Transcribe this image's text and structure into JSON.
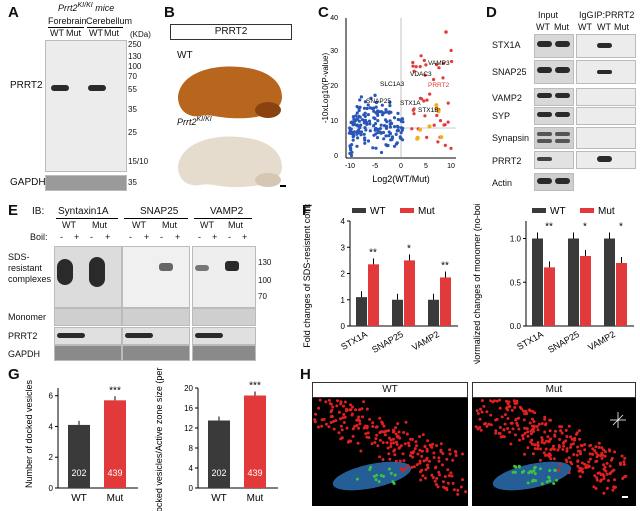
{
  "panels": {
    "A": {
      "label": "A",
      "mice": "Prrt2",
      "mice_sup": "KI/KI",
      "mice_suffix": " mice",
      "regions": [
        "Forebrain",
        "Cerebellum"
      ],
      "lanes": [
        "WT",
        "Mut",
        "WT",
        "Mut"
      ],
      "protein": "PRRT2",
      "loading": "GAPDH",
      "kda_unit": "(KDa)",
      "markers": [
        "250",
        "130",
        "100",
        "70",
        "55",
        "35",
        "25",
        "15/10",
        "35"
      ]
    },
    "B": {
      "label": "B",
      "header": "PRRT2",
      "wt": "WT",
      "mut": "Prrt2",
      "mut_sup": "KI/KI"
    },
    "C": {
      "label": "C",
      "ylabel": "-10xLog10(P-value)",
      "xlabel": "Log2(WT/Mut)",
      "annotations": [
        "VAMP3",
        "VDAC3",
        "PRRT2",
        "SLC1A3",
        "SNAP25",
        "STX1A",
        "STX1B"
      ],
      "xticks": [
        "-10",
        "-5",
        "0",
        "5",
        "10"
      ],
      "yticks": [
        "0",
        "10",
        "20",
        "30",
        "40"
      ]
    },
    "D": {
      "label": "D",
      "groups": [
        "Input",
        "IgG",
        "IP:PRRT2"
      ],
      "lanes": [
        "WT",
        "Mut",
        "WT",
        "WT",
        "Mut"
      ],
      "rows": [
        "STX1A",
        "SNAP25",
        "VAMP2",
        "SYP",
        "Synapsin",
        "PRRT2",
        "Actin"
      ]
    },
    "E": {
      "label": "E",
      "ib": "IB:",
      "targets": [
        "Syntaxin1A",
        "SNAP25",
        "VAMP2"
      ],
      "genotypes": [
        "WT",
        "Mut",
        "WT",
        "Mut",
        "WT",
        "Mut"
      ],
      "boil": "Boil:",
      "boil_signs": [
        "-",
        "+",
        "-",
        "+",
        "-",
        "+",
        "-",
        "+",
        "-",
        "+",
        "-",
        "+"
      ],
      "rows": [
        "SDS-resistant complexes",
        "Monomer",
        "PRRT2",
        "GAPDH"
      ],
      "markers": [
        "130",
        "100",
        "70"
      ]
    },
    "F": {
      "label": "F",
      "legend": [
        "WT",
        "Mut"
      ],
      "colors": {
        "wt": "#3a3a3a",
        "mut": "#e23a3a"
      }
    },
    "G": {
      "label": "G",
      "legend_n": [
        "202",
        "439"
      ]
    },
    "H": {
      "label": "H",
      "titles": [
        "WT",
        "Mut"
      ]
    }
  },
  "chart_data": [
    {
      "type": "bar",
      "title": "",
      "categories": [
        "STX1A",
        "SNAP25",
        "VAMP2"
      ],
      "series": [
        {
          "name": "WT",
          "values": [
            1.1,
            1.0,
            1.0
          ]
        },
        {
          "name": "Mut",
          "values": [
            2.35,
            2.5,
            1.85
          ]
        }
      ],
      "significance": [
        "**",
        "*",
        "**"
      ],
      "ylabel": "Fold changes of SDS-resistent complexes",
      "yticks": [
        "0",
        "1",
        "2",
        "3",
        "4"
      ],
      "ylim": [
        0,
        4
      ]
    },
    {
      "type": "bar",
      "title": "",
      "categories": [
        "STX1A",
        "SNAP25",
        "VAMP2"
      ],
      "series": [
        {
          "name": "WT",
          "values": [
            1.0,
            1.0,
            1.0
          ]
        },
        {
          "name": "Mut",
          "values": [
            0.67,
            0.8,
            0.72
          ]
        }
      ],
      "significance": [
        "**",
        "*",
        "*"
      ],
      "ylabel": "Normalized changes of monomer (no-boiled/boiled)",
      "yticks": [
        "0.0",
        "0.5",
        "1.0"
      ],
      "ylim": [
        0,
        1.2
      ]
    },
    {
      "type": "bar",
      "title": "",
      "categories": [
        "WT",
        "Mut"
      ],
      "values": [
        4.1,
        5.7
      ],
      "n": [
        "202",
        "439"
      ],
      "significance": "***",
      "ylabel": "Number of docked vesicles",
      "yticks": [
        "0",
        "2",
        "4",
        "6"
      ],
      "ylim": [
        0,
        6.5
      ]
    },
    {
      "type": "bar",
      "title": "",
      "categories": [
        "WT",
        "Mut"
      ],
      "values": [
        13.5,
        18.5
      ],
      "n": [
        "202",
        "439"
      ],
      "significance": "***",
      "ylabel": "Docked vesicles/Active zone size (per μm)",
      "yticks": [
        "0",
        "4",
        "8",
        "12",
        "16",
        "20"
      ],
      "ylim": [
        0,
        20
      ]
    }
  ]
}
